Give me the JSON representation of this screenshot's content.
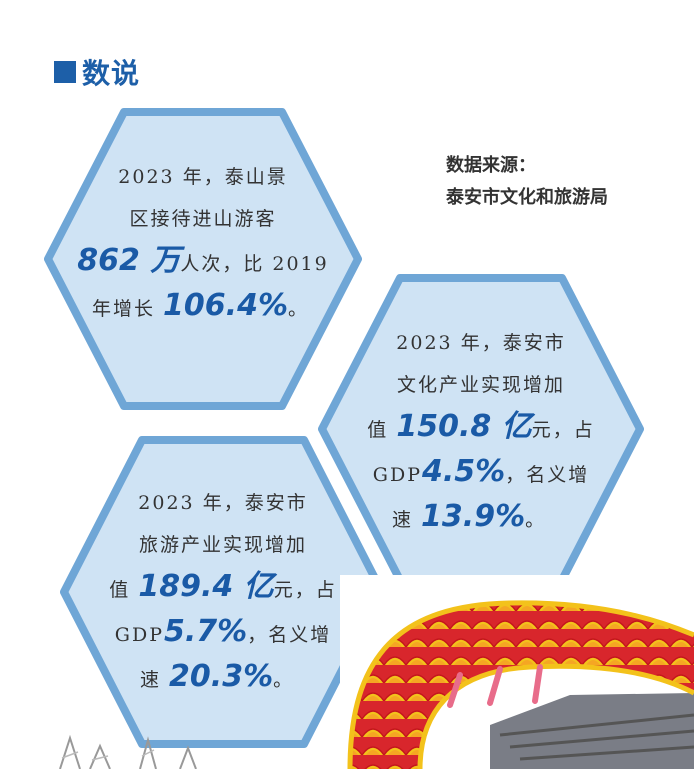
{
  "header": {
    "title": "数说"
  },
  "source": {
    "line1": "数据来源：",
    "line2": "泰安市文化和旅游局"
  },
  "hex1": {
    "line1": "2023 年，泰山景",
    "line2": "区接待进山游客",
    "num1": "862 万",
    "line3_rest": "人次，比 2019",
    "line4_pre": "年增长 ",
    "num2": "106.4%",
    "line4_post": "。"
  },
  "hex2": {
    "line1": "2023 年，泰安市",
    "line2": "文化产业实现增加",
    "line3_pre": "值 ",
    "num1": "150.8 亿",
    "line3_post": "元，占",
    "line4_pre": "GDP",
    "num2": "4.5%",
    "line4_post": "，名义增",
    "line5_pre": "速 ",
    "num3": "13.9%",
    "line5_post": "。"
  },
  "hex3": {
    "line1": "2023 年，泰安市",
    "line2": "旅游产业实现增加",
    "line3_pre": "值 ",
    "num1": "189.4 亿",
    "line3_post": "元，占",
    "line4_pre": "GDP",
    "num2": "5.7%",
    "line4_post": "，名义增",
    "line5_pre": "速 ",
    "num3": "20.3%",
    "line5_post": "。"
  },
  "colors": {
    "accent": "#1d5fa8",
    "hex_fill": "#cfe3f4",
    "hex_stroke": "#6fa6d6",
    "dragon_red": "#d8262c",
    "dragon_yellow": "#f3c21b"
  }
}
